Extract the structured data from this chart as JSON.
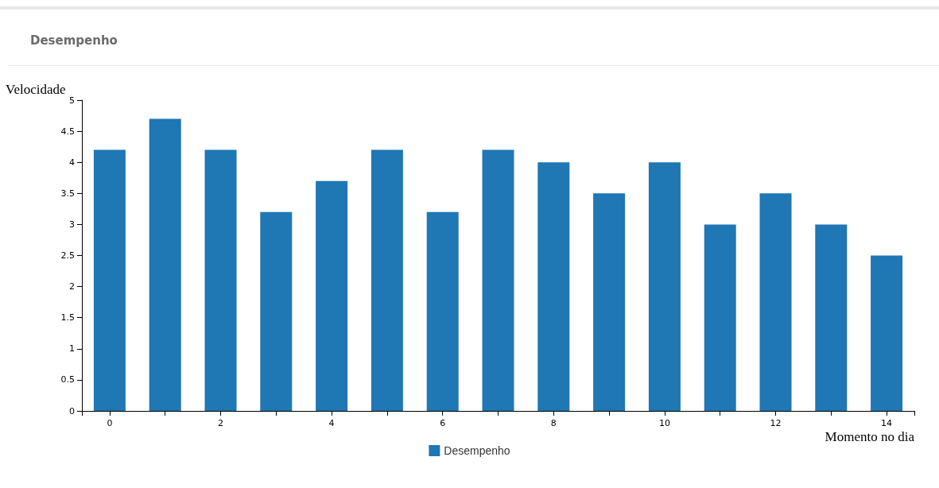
{
  "chart_data": {
    "type": "bar",
    "title": "Desempenho",
    "xlabel": "Momento no dia",
    "ylabel": "Velocidade",
    "x": [
      0,
      1,
      2,
      3,
      4,
      5,
      6,
      7,
      8,
      9,
      10,
      11,
      12,
      13,
      14
    ],
    "series": [
      {
        "name": "Desempenho",
        "color": "#1f77b4",
        "values": [
          4.2,
          4.7,
          4.2,
          3.2,
          3.7,
          4.2,
          3.2,
          4.2,
          4.0,
          3.5,
          4.0,
          3.0,
          3.5,
          3.0,
          2.5
        ]
      }
    ],
    "xlim": [
      -0.5,
      14.5
    ],
    "xticks": [
      0,
      {
        "value": 1,
        "label": null
      },
      2,
      {
        "value": 3,
        "label": null
      },
      4,
      {
        "value": 5,
        "label": null
      },
      6,
      {
        "value": 7,
        "label": null
      },
      8,
      {
        "value": 9,
        "label": null
      },
      10,
      {
        "value": 11,
        "label": null
      },
      12,
      {
        "value": 13,
        "label": null
      },
      14
    ],
    "ylim": [
      0,
      5
    ],
    "yticks": [
      0,
      0.5,
      1,
      1.5,
      2,
      2.5,
      3,
      3.5,
      4,
      4.5,
      5
    ],
    "grid": false,
    "legend": "bottom"
  }
}
